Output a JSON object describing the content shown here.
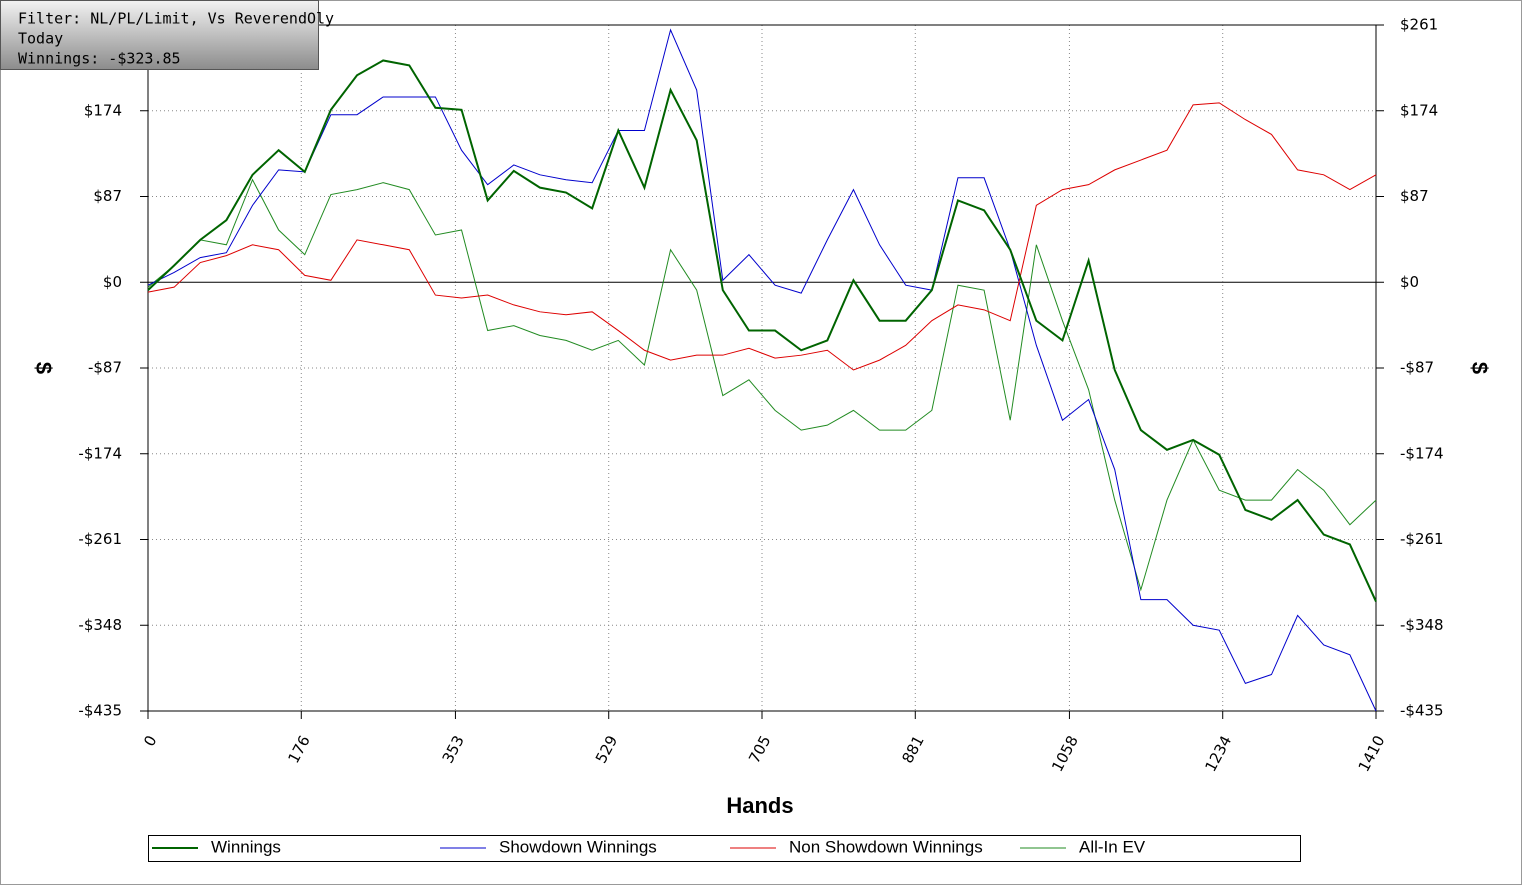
{
  "chart_data": {
    "type": "line",
    "annotations": [
      "Filter: NL/PL/Limit, Vs ReverendOly",
      "Today",
      "Winnings: -$323.85"
    ],
    "xlabel": "Hands",
    "ylabel": "$",
    "x": [
      0,
      30,
      60,
      90,
      120,
      150,
      180,
      210,
      240,
      270,
      300,
      330,
      360,
      390,
      420,
      450,
      480,
      510,
      540,
      570,
      600,
      630,
      660,
      690,
      720,
      750,
      780,
      810,
      840,
      870,
      900,
      930,
      960,
      990,
      1020,
      1050,
      1080,
      1110,
      1140,
      1170,
      1200,
      1230,
      1260,
      1290,
      1320,
      1350,
      1380,
      1410
    ],
    "xlim": [
      0,
      1410
    ],
    "xticks": [
      0,
      176,
      353,
      529,
      705,
      881,
      1058,
      1234,
      1410
    ],
    "ylim": [
      -435,
      261
    ],
    "yticks": [
      {
        "value": -435,
        "label": "-$435"
      },
      {
        "value": -348,
        "label": "-$348"
      },
      {
        "value": -261,
        "label": "-$261"
      },
      {
        "value": -174,
        "label": "-$174"
      },
      {
        "value": -87,
        "label": "-$87"
      },
      {
        "value": 0,
        "label": "$0"
      },
      {
        "value": 87,
        "label": "$87"
      },
      {
        "value": 174,
        "label": "$174"
      },
      {
        "value": 261,
        "label": "$261"
      }
    ],
    "grid": true,
    "series": [
      {
        "name": "Winnings",
        "color": "#006400",
        "values": [
          -8,
          17,
          43,
          63,
          109,
          134,
          112,
          175,
          210,
          225,
          220,
          177,
          175,
          83,
          113,
          96,
          91,
          75,
          154,
          96,
          195,
          144,
          -8,
          -49,
          -49,
          -69,
          -59,
          2,
          -39,
          -39,
          -8,
          83,
          73,
          33,
          -39,
          -59,
          22,
          -89,
          -150,
          -170,
          -160,
          -175,
          -231,
          -241,
          -221,
          -256,
          -266,
          -324
        ]
      },
      {
        "name": "Showdown Winnings",
        "color": "#0000cc",
        "values": [
          -3,
          10,
          25,
          30,
          78,
          114,
          112,
          170,
          170,
          188,
          188,
          188,
          134,
          99,
          119,
          109,
          104,
          101,
          154,
          154,
          256,
          195,
          2,
          28,
          -3,
          -11,
          43,
          94,
          38,
          -3,
          -8,
          106,
          106,
          33,
          -64,
          -140,
          -119,
          -190,
          -322,
          -322,
          -348,
          -353,
          -407,
          -398,
          -338,
          -368,
          -378,
          -435
        ]
      },
      {
        "name": "Non Showdown Winnings",
        "color": "#dd0000",
        "values": [
          -10,
          -5,
          20,
          27,
          38,
          33,
          7,
          2,
          43,
          38,
          33,
          -13,
          -16,
          -13,
          -23,
          -30,
          -33,
          -30,
          -49,
          -69,
          -79,
          -74,
          -74,
          -67,
          -77,
          -74,
          -69,
          -89,
          -79,
          -64,
          -39,
          -23,
          -28,
          -39,
          78,
          94,
          99,
          114,
          124,
          134,
          180,
          182,
          165,
          150,
          114,
          109,
          94,
          109
        ]
      },
      {
        "name": "All-In EV",
        "color": "#228b22",
        "values": [
          -5,
          17,
          43,
          38,
          104,
          53,
          28,
          89,
          94,
          101,
          94,
          48,
          53,
          -49,
          -44,
          -54,
          -59,
          -69,
          -59,
          -84,
          33,
          -8,
          -115,
          -99,
          -130,
          -150,
          -145,
          -130,
          -150,
          -150,
          -130,
          -3,
          -8,
          -140,
          38,
          -39,
          -109,
          -221,
          -312,
          -221,
          -160,
          -211,
          -221,
          -221,
          -190,
          -211,
          -246,
          -221
        ]
      }
    ]
  }
}
